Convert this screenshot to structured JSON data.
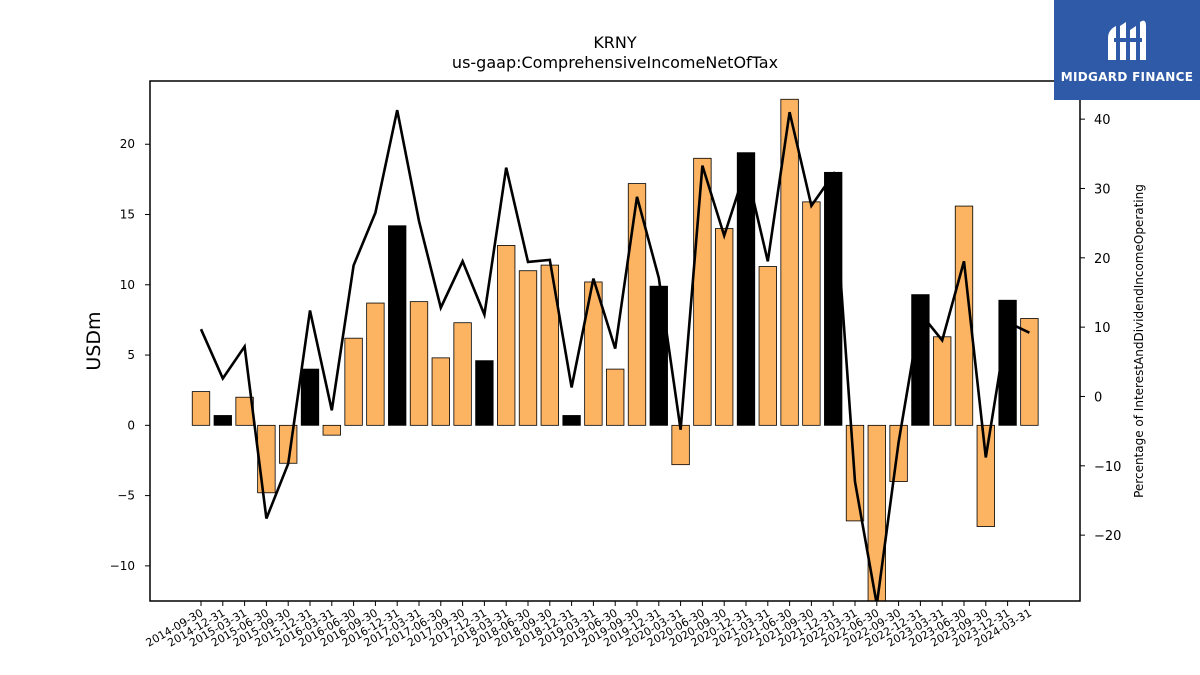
{
  "brand": {
    "name": "MIDGARD FINANCE",
    "logo_icon": "midgard-logo-icon",
    "background": "#2f5aa8"
  },
  "colors": {
    "bar_positive_default": "#fdb462",
    "bar_highlight": "#000000",
    "line": "#000000"
  },
  "chart_data": {
    "type": "bar",
    "title": "KRNY",
    "subtitle": "us-gaap:ComprehensiveIncomeNetOfTax",
    "ylabel": "USDm",
    "y2label": "Percentage of InterestAndDividendIncomeOperating",
    "ylim": [
      -12.5,
      24.5
    ],
    "y2lim": [
      -29.5,
      45.5
    ],
    "yticks": [
      -10,
      -5,
      0,
      5,
      10,
      15,
      20
    ],
    "y2ticks": [
      -20,
      -10,
      0,
      10,
      20,
      30,
      40
    ],
    "categories": [
      "2014-09-30",
      "2014-12-31",
      "2015-03-31",
      "2015-06-30",
      "2015-09-30",
      "2015-12-31",
      "2016-03-31",
      "2016-06-30",
      "2016-09-30",
      "2016-12-31",
      "2017-03-31",
      "2017-06-30",
      "2017-09-30",
      "2017-12-31",
      "2018-03-31",
      "2018-06-30",
      "2018-09-30",
      "2018-12-31",
      "2019-03-31",
      "2019-06-30",
      "2019-09-30",
      "2019-12-31",
      "2020-03-31",
      "2020-06-30",
      "2020-09-30",
      "2020-12-31",
      "2021-03-31",
      "2021-06-30",
      "2021-09-30",
      "2021-12-31",
      "2022-03-31",
      "2022-06-30",
      "2022-09-30",
      "2022-12-31",
      "2023-03-31",
      "2023-06-30",
      "2023-09-30",
      "2023-12-31",
      "2024-03-31"
    ],
    "series": [
      {
        "kind": "bar",
        "values": [
          2.4,
          0.7,
          2.0,
          -4.8,
          -2.7,
          4.0,
          -0.7,
          6.2,
          8.7,
          14.2,
          8.8,
          4.8,
          7.3,
          4.6,
          12.8,
          11.0,
          11.4,
          0.7,
          10.2,
          4.0,
          17.2,
          9.9,
          -2.8,
          19.0,
          14.0,
          19.4,
          11.3,
          23.2,
          15.9,
          18.0,
          -6.8,
          -12.5,
          -4.0,
          9.3,
          6.3,
          15.6,
          -7.2,
          8.9,
          7.6
        ],
        "highlight": [
          false,
          true,
          false,
          false,
          false,
          true,
          false,
          false,
          false,
          true,
          false,
          false,
          false,
          true,
          false,
          false,
          false,
          true,
          false,
          false,
          false,
          true,
          false,
          false,
          false,
          true,
          false,
          false,
          false,
          true,
          false,
          false,
          false,
          true,
          false,
          false,
          false,
          true,
          false
        ]
      },
      {
        "kind": "line",
        "axis": "right",
        "values": [
          9.7,
          2.6,
          7.2,
          -17.6,
          -9.7,
          12.4,
          -2.0,
          18.9,
          26.5,
          41.3,
          25.3,
          12.8,
          19.5,
          11.8,
          33.0,
          19.4,
          19.7,
          1.3,
          17.0,
          6.9,
          28.8,
          17.1,
          -4.8,
          33.3,
          23.2,
          32.9,
          19.5,
          41.0,
          27.5,
          32.0,
          -12.3,
          -30.0,
          -6.6,
          12.0,
          8.1,
          19.5,
          -8.8,
          10.7,
          9.2
        ]
      }
    ]
  }
}
